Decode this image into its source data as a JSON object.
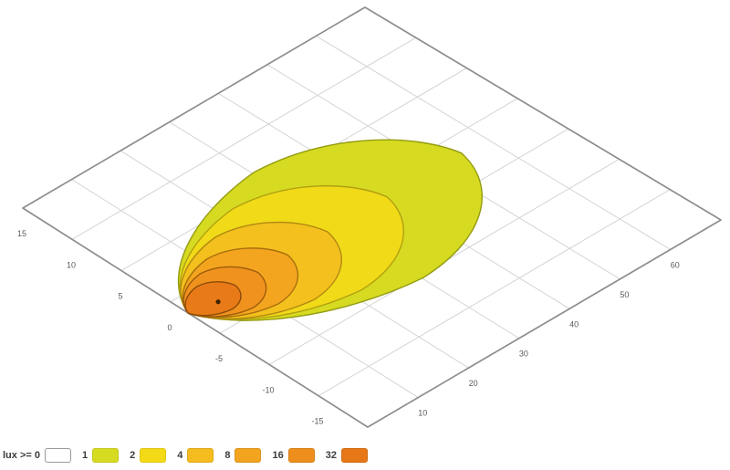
{
  "chart_data": {
    "type": "isolux_contour_carpet",
    "title": "",
    "description": "Beam-pattern illuminance (isolux) contours projected on a perspective ground grid",
    "units": {
      "distance": "m",
      "illuminance": "lux"
    },
    "axes": {
      "grid_cells": 7,
      "lateral_m_per_cell": 5,
      "distance_m_per_cell": 10,
      "lateral_ticks": [
        "15",
        "10",
        "5",
        "0",
        "-5",
        "-10",
        "-15"
      ],
      "distance_ticks": [
        "10",
        "20",
        "30",
        "40",
        "50",
        "60"
      ]
    },
    "grid_style": {
      "interior_line_color": "#d4d4d4",
      "border_color": "#8d8d8d",
      "background": "#ffffff"
    },
    "contours": [
      {
        "lux": 1,
        "reach_m": 55.0,
        "half_width_m": 8.5,
        "fill": "#d6da21",
        "stroke": "#959c12"
      },
      {
        "lux": 2,
        "reach_m": 40.0,
        "half_width_m": 6.5,
        "fill": "#f1da18",
        "stroke": "#b1a011"
      },
      {
        "lux": 4,
        "reach_m": 28.0,
        "half_width_m": 5.0,
        "fill": "#f4c01d",
        "stroke": "#b08812"
      },
      {
        "lux": 8,
        "reach_m": 20.0,
        "half_width_m": 3.6,
        "fill": "#f4a51f",
        "stroke": "#a76f0d"
      },
      {
        "lux": 16,
        "reach_m": 14.0,
        "half_width_m": 2.7,
        "fill": "#f0921e",
        "stroke": "#9d5d0a"
      },
      {
        "lux": 32,
        "reach_m": 9.5,
        "half_width_m": 1.8,
        "fill": "#e97a18",
        "stroke": "#8c4a07"
      }
    ],
    "hotspot": {
      "distance_m": 5,
      "lateral_m": -0.5,
      "color": "#3a2405"
    },
    "legend": {
      "text_color": "#3c3c3c",
      "items": [
        {
          "label": "lux >= 0",
          "color": "#ffffff",
          "border": "#9a9a9a"
        },
        {
          "label": "1",
          "color": "#d6da21",
          "border": "#c4c71e"
        },
        {
          "label": "2",
          "color": "#f4d916",
          "border": "#dfc614"
        },
        {
          "label": "4",
          "color": "#f4bc1e",
          "border": "#dea91b"
        },
        {
          "label": "8",
          "color": "#f2a41f",
          "border": "#da931c"
        },
        {
          "label": "16",
          "color": "#ee8f1d",
          "border": "#d6801a"
        },
        {
          "label": "32",
          "color": "#e87817",
          "border": "#d06b14"
        }
      ]
    }
  }
}
